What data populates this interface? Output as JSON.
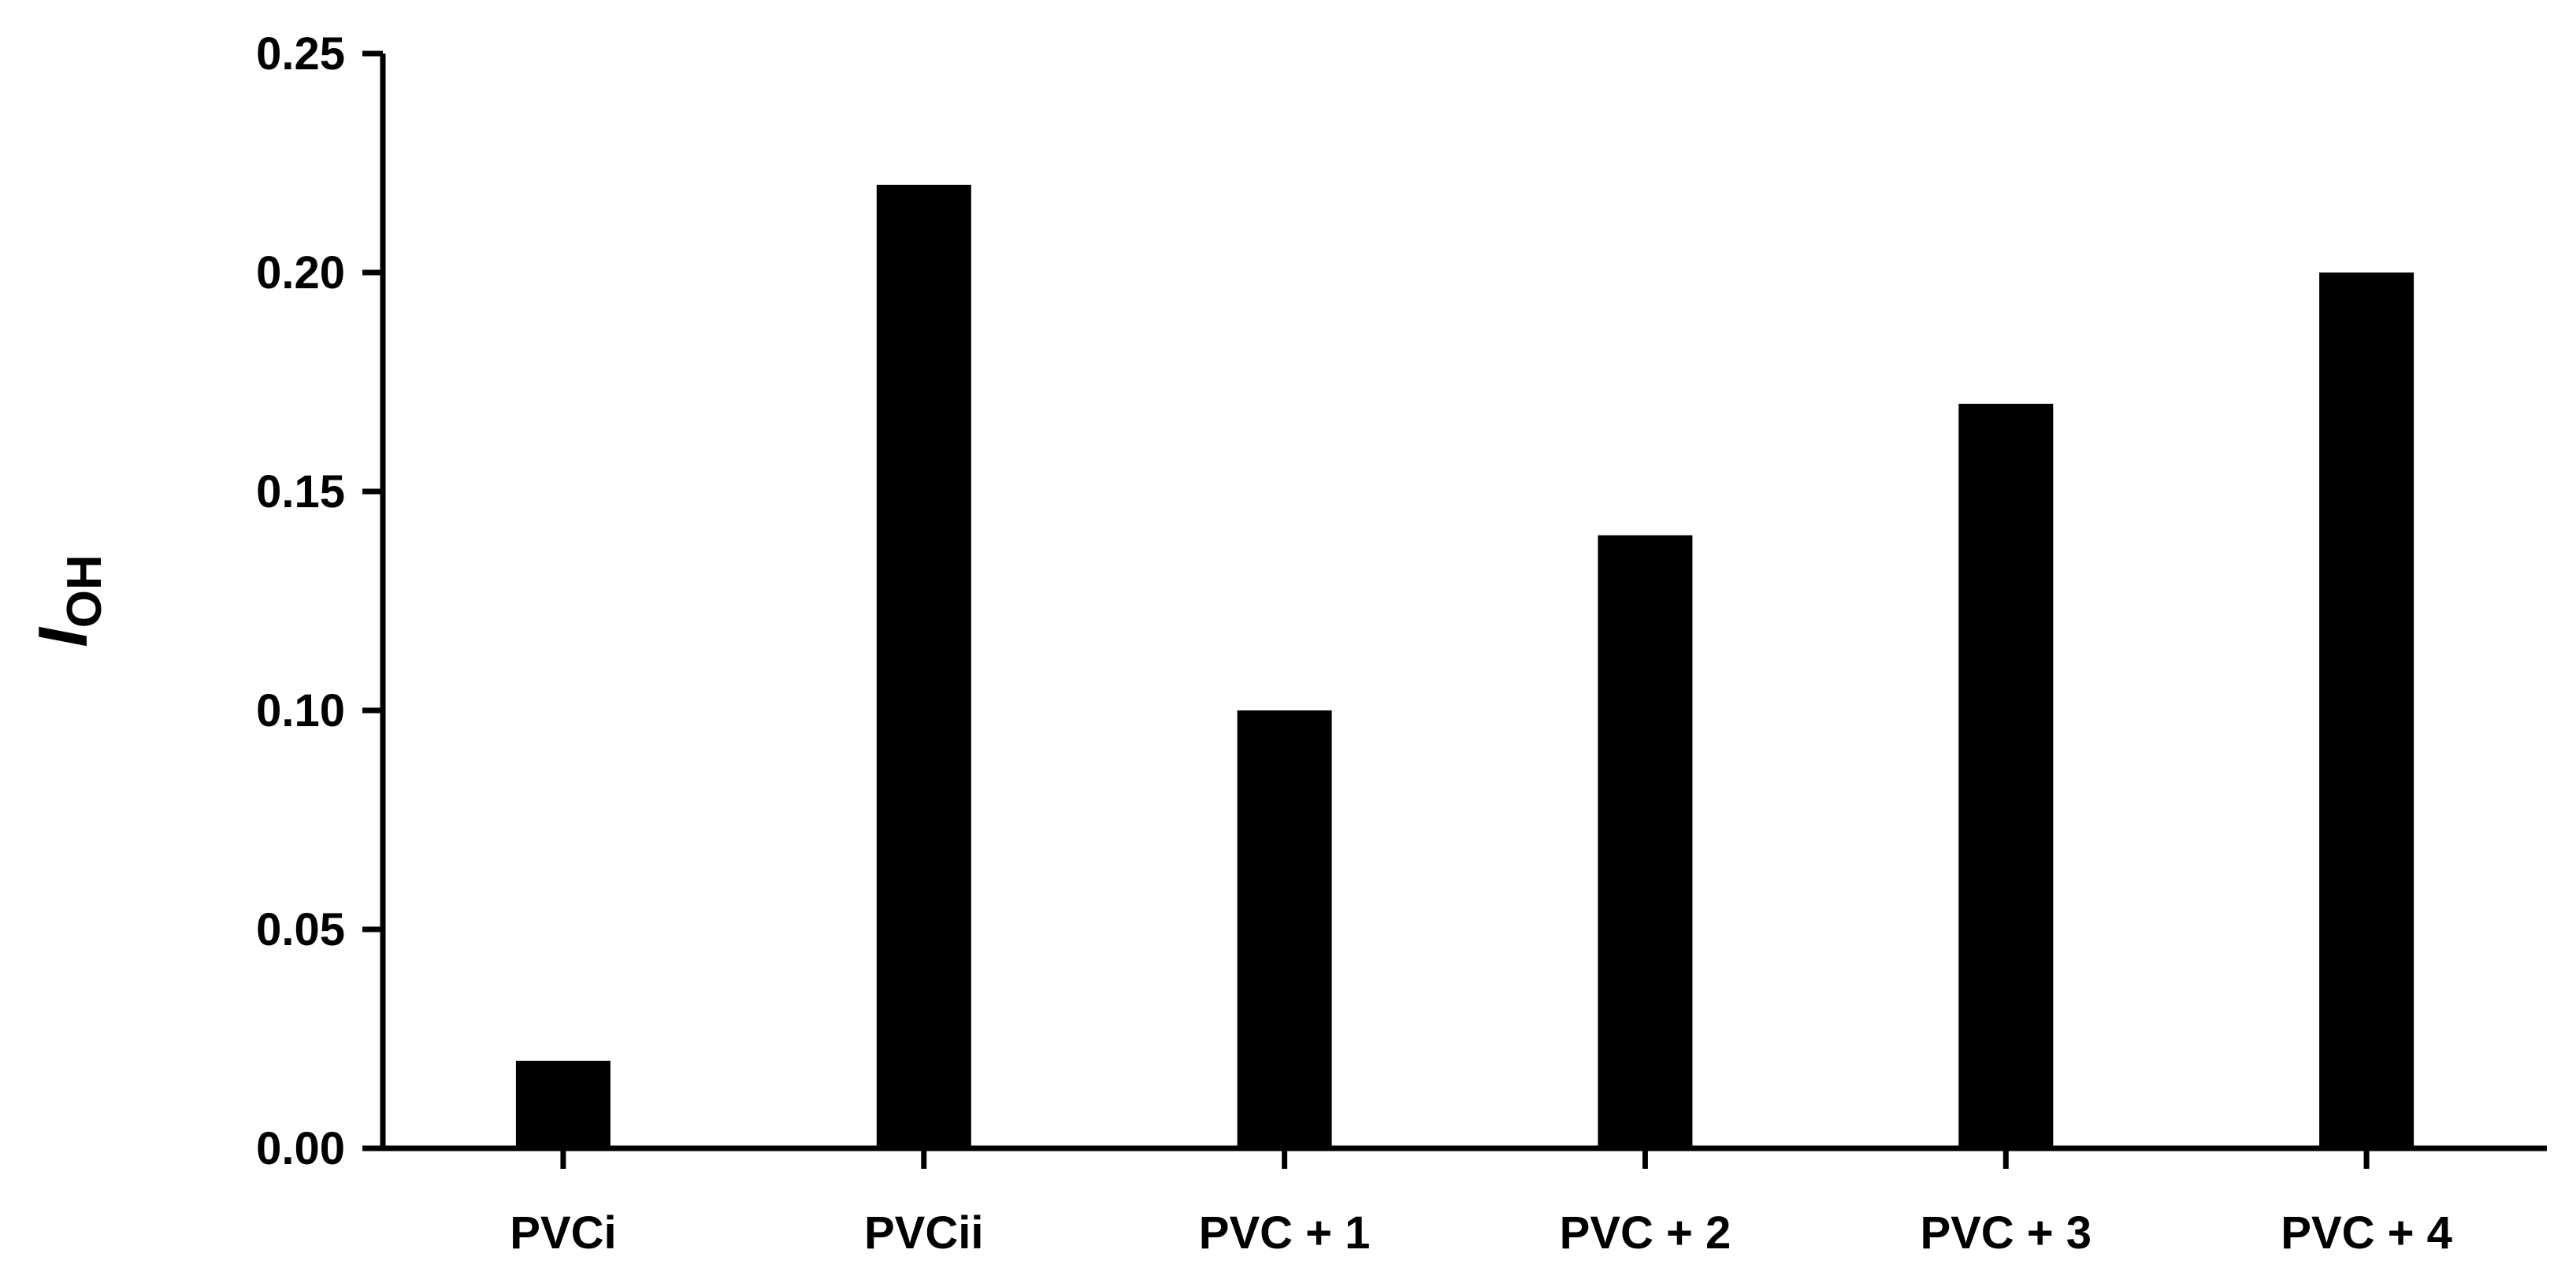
{
  "chart_data": {
    "type": "bar",
    "categories": [
      "PVCi",
      "PVCii",
      "PVC + 1",
      "PVC + 2",
      "PVC + 3",
      "PVC + 4"
    ],
    "values": [
      0.02,
      0.22,
      0.1,
      0.14,
      0.17,
      0.2
    ],
    "ylabel": {
      "main": "I",
      "subscript": "OH"
    },
    "xlabel": "",
    "ylim": [
      0,
      0.25
    ],
    "yticks": [
      0.0,
      0.05,
      0.1,
      0.15,
      0.2,
      0.25
    ],
    "ytick_labels": [
      "0.00",
      "0.05",
      "0.10",
      "0.15",
      "0.20",
      "0.25"
    ],
    "bar_color": "#000000",
    "grid": false,
    "legend": "none"
  }
}
